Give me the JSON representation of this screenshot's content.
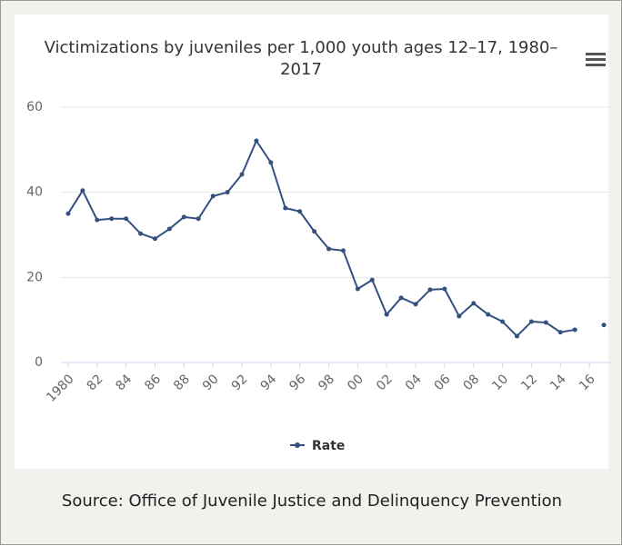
{
  "chart_data": {
    "type": "line",
    "title": "Victimizations by juveniles per 1,000 youth ages 12–17, 1980–2017",
    "x": [
      1980,
      1981,
      1982,
      1983,
      1984,
      1985,
      1986,
      1987,
      1988,
      1989,
      1990,
      1991,
      1992,
      1993,
      1994,
      1995,
      1996,
      1997,
      1998,
      1999,
      2000,
      2001,
      2002,
      2003,
      2004,
      2005,
      2006,
      2007,
      2008,
      2009,
      2010,
      2011,
      2012,
      2013,
      2014,
      2015,
      2016,
      2017
    ],
    "series": [
      {
        "name": "Rate",
        "color": "#34507f",
        "values": [
          35.0,
          40.4,
          33.5,
          33.8,
          33.8,
          30.3,
          29.1,
          31.4,
          34.2,
          33.8,
          39.1,
          40.0,
          44.2,
          52.1,
          47.0,
          36.3,
          35.5,
          30.8,
          26.7,
          26.3,
          17.3,
          19.4,
          11.3,
          15.2,
          13.7,
          17.1,
          17.3,
          10.9,
          13.9,
          11.3,
          9.6,
          6.2,
          9.6,
          9.4,
          7.1,
          7.7,
          null,
          8.8
        ]
      }
    ],
    "xlim": [
      1979.5,
      2017.5
    ],
    "xticks": [
      {
        "value": 1980,
        "label": "1980"
      },
      {
        "value": 1982,
        "label": "82"
      },
      {
        "value": 1984,
        "label": "84"
      },
      {
        "value": 1986,
        "label": "86"
      },
      {
        "value": 1988,
        "label": "88"
      },
      {
        "value": 1990,
        "label": "90"
      },
      {
        "value": 1992,
        "label": "92"
      },
      {
        "value": 1994,
        "label": "94"
      },
      {
        "value": 1996,
        "label": "96"
      },
      {
        "value": 1998,
        "label": "98"
      },
      {
        "value": 2000,
        "label": "00"
      },
      {
        "value": 2002,
        "label": "02"
      },
      {
        "value": 2004,
        "label": "04"
      },
      {
        "value": 2006,
        "label": "06"
      },
      {
        "value": 2008,
        "label": "08"
      },
      {
        "value": 2010,
        "label": "10"
      },
      {
        "value": 2012,
        "label": "12"
      },
      {
        "value": 2014,
        "label": "14"
      },
      {
        "value": 2016,
        "label": "16"
      }
    ],
    "ylim": [
      0,
      60
    ],
    "yticks": [
      0,
      20,
      40,
      60
    ],
    "grid": true
  },
  "source": "Source: Office of Juvenile Justice and Delinquency Prevention"
}
